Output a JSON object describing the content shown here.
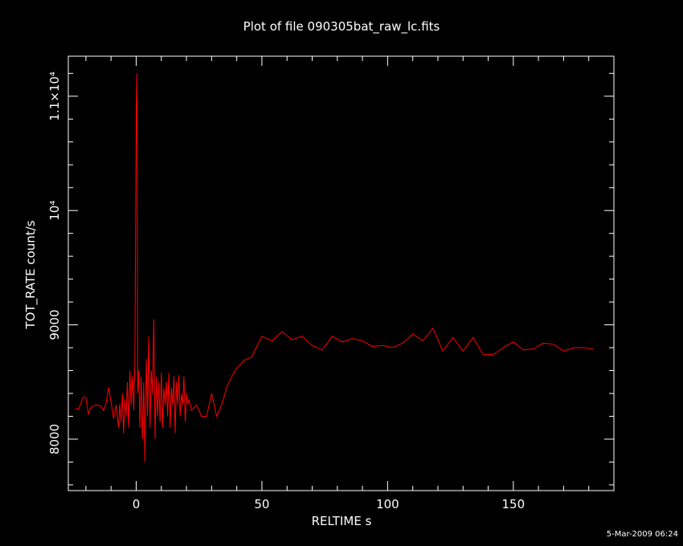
{
  "title": "Plot of file 090305bat_raw_lc.fits",
  "footer": {
    "timestamp": "5-Mar-2009 06:24"
  },
  "colors": {
    "background": "#000000",
    "axes": "#ffffff",
    "series": "#ff0000"
  },
  "chart_data": {
    "type": "line",
    "title": "Plot of file 090305bat_raw_lc.fits",
    "xlabel": "RELTIME  s",
    "ylabel": "TOT_RATE  count/s",
    "xlim": [
      -27,
      190
    ],
    "ylim": [
      7550,
      11350
    ],
    "xticks": [
      {
        "value": 0,
        "label": "0"
      },
      {
        "value": 50,
        "label": "50"
      },
      {
        "value": 100,
        "label": "100"
      },
      {
        "value": 150,
        "label": "150"
      }
    ],
    "yticks": [
      {
        "value": 8000,
        "label": "8000"
      },
      {
        "value": 9000,
        "label": "9000"
      },
      {
        "value": 10000,
        "label": "10⁴"
      },
      {
        "value": 11000,
        "label": "1.1×10⁴"
      }
    ],
    "grid": false,
    "legend": "none",
    "series": [
      {
        "color": "#ff0000",
        "x": [
          -24,
          -23,
          -21,
          -20,
          -19,
          -18,
          -16,
          -14,
          -13,
          -12,
          -11,
          -10,
          -9,
          -8,
          -7,
          -6.5,
          -6,
          -5.5,
          -5,
          -4.5,
          -4,
          -3.5,
          -3,
          -2.5,
          -2,
          -1.5,
          -1,
          -0.5,
          0,
          0.3,
          0.6,
          1,
          1.5,
          2,
          2.5,
          3,
          3.5,
          4,
          4.5,
          5,
          5.5,
          6,
          6.5,
          7,
          7.5,
          8,
          8.5,
          9,
          9.5,
          10,
          10.5,
          11,
          11.5,
          12,
          12.5,
          13,
          13.5,
          14,
          14.5,
          15,
          15.5,
          16,
          16.5,
          17,
          17.5,
          18,
          18.5,
          19,
          19.5,
          20,
          20.5,
          21,
          22,
          24,
          26,
          28,
          30,
          32,
          34,
          36,
          38,
          40,
          43,
          46,
          50,
          54,
          58,
          62,
          66,
          70,
          74,
          78,
          82,
          86,
          90,
          94,
          98,
          102,
          106,
          110,
          114,
          118,
          122,
          126,
          130,
          134,
          138,
          142,
          146,
          150,
          154,
          158,
          162,
          166,
          170,
          174,
          178,
          182
        ],
        "y": [
          8270,
          8260,
          8370,
          8360,
          8220,
          8280,
          8300,
          8290,
          8250,
          8310,
          8450,
          8330,
          8180,
          8300,
          8100,
          8310,
          8150,
          8400,
          8050,
          8350,
          8200,
          8500,
          8100,
          8600,
          8300,
          8550,
          8250,
          8700,
          10850,
          11200,
          8400,
          8600,
          8100,
          8550,
          8000,
          8500,
          7800,
          8700,
          8200,
          8900,
          8100,
          8600,
          8400,
          9050,
          8000,
          8550,
          8200,
          8500,
          8150,
          8580,
          8100,
          8450,
          8300,
          8500,
          8200,
          8580,
          8100,
          8450,
          8300,
          8550,
          8050,
          8500,
          8300,
          8560,
          8200,
          8400,
          8300,
          8550,
          8150,
          8400,
          8300,
          8350,
          8250,
          8300,
          8200,
          8200,
          8400,
          8200,
          8300,
          8450,
          8550,
          8620,
          8690,
          8720,
          8900,
          8860,
          8940,
          8870,
          8900,
          8820,
          8780,
          8900,
          8850,
          8880,
          8860,
          8810,
          8820,
          8800,
          8840,
          8920,
          8860,
          8970,
          8770,
          8890,
          8770,
          8890,
          8740,
          8740,
          8800,
          8850,
          8780,
          8790,
          8840,
          8830,
          8770,
          8800,
          8800,
          8790
        ]
      }
    ]
  }
}
